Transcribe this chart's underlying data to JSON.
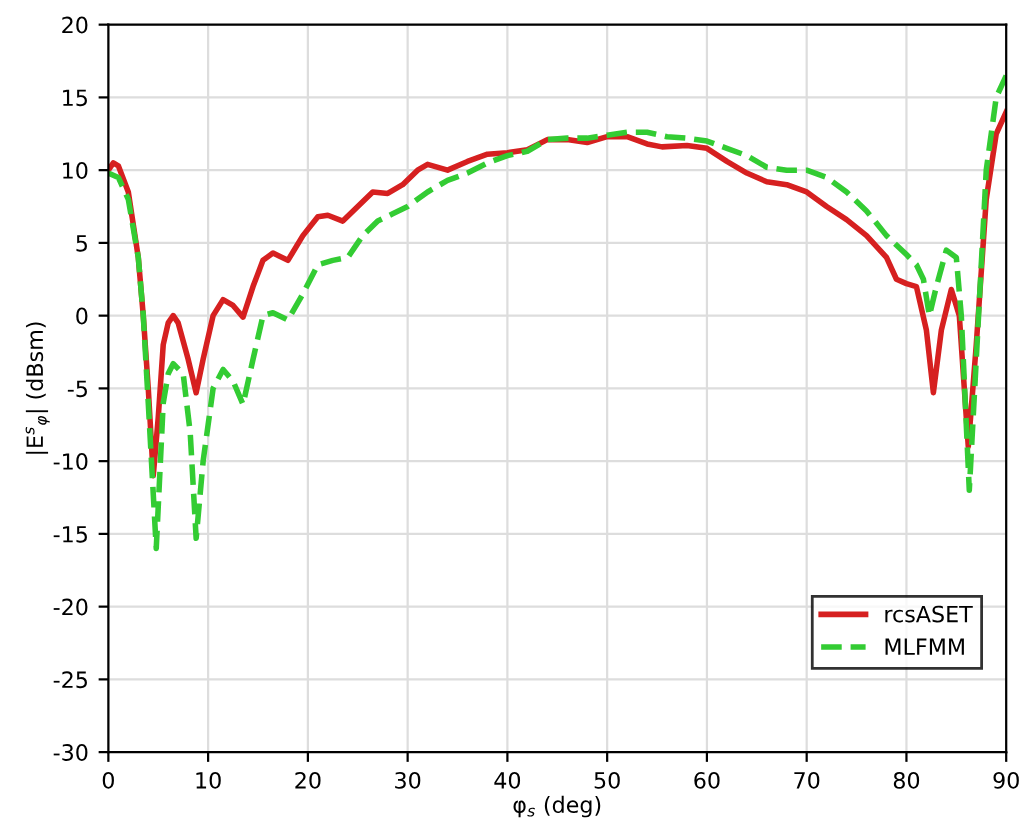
{
  "chart_data": {
    "type": "line",
    "xlabel": "φ$_{s}$ (deg)",
    "ylabel": "|E$^{s}$$_{φ}$| (dBsm)",
    "xlim": [
      0,
      90
    ],
    "xticks": [
      0,
      10,
      20,
      30,
      40,
      50,
      60,
      70,
      80,
      90
    ],
    "ylim": [
      -30,
      20
    ],
    "yticks": [
      -30,
      -25,
      -20,
      -15,
      -10,
      -5,
      0,
      5,
      10,
      15,
      20
    ],
    "grid": true,
    "legend": "bottom right",
    "marker": "none",
    "series": [
      {
        "name": "rcsASET",
        "color": "#d62020",
        "line_style": "solid",
        "x": [
          0,
          0.5,
          1,
          2,
          3,
          3.5,
          4,
          4.5,
          5,
          5.5,
          6,
          6.5,
          7,
          8,
          8.8,
          9.5,
          10.5,
          11.5,
          12.5,
          13.5,
          14.5,
          15.5,
          16.5,
          18,
          19.5,
          21,
          22,
          23.5,
          25,
          26.5,
          28,
          29.5,
          31,
          32,
          34,
          36,
          38,
          40,
          42,
          44,
          46,
          48,
          50,
          52,
          54,
          55.5,
          58,
          60,
          62,
          64,
          66,
          68,
          70,
          72,
          74,
          76,
          78,
          79,
          80,
          81,
          82,
          82.7,
          83.5,
          84.5,
          85.3,
          86.2,
          87,
          88,
          89,
          90
        ],
        "values": [
          10,
          10.5,
          10.3,
          8.5,
          4,
          0,
          -5,
          -11,
          -7,
          -2,
          -0.5,
          0,
          -0.5,
          -3,
          -5.3,
          -3,
          0,
          1.1,
          0.7,
          -0.1,
          2,
          3.8,
          4.3,
          3.8,
          5.5,
          6.8,
          6.9,
          6.5,
          7.5,
          8.5,
          8.4,
          9,
          10,
          10.4,
          10,
          10.6,
          11.1,
          11.2,
          11.4,
          12.1,
          12.1,
          11.9,
          12.3,
          12.3,
          11.8,
          11.6,
          11.7,
          11.5,
          10.6,
          9.8,
          9.2,
          9,
          8.5,
          7.5,
          6.6,
          5.5,
          4,
          2.5,
          2.2,
          2,
          -1,
          -5.3,
          -1,
          1.8,
          0,
          -9,
          -2,
          8,
          12.5,
          14
        ]
      },
      {
        "name": "MLFMM",
        "color": "#33cc33",
        "line_style": "dashed",
        "x": [
          0,
          1,
          2,
          3,
          3.5,
          4,
          4.8,
          5.5,
          6,
          6.5,
          7.5,
          8.2,
          8.8,
          9.5,
          10.5,
          11.5,
          12.5,
          13.5,
          14.5,
          15.5,
          16.5,
          18,
          19.5,
          21,
          22.5,
          24,
          25.5,
          27,
          28.5,
          30,
          32,
          34,
          36,
          38,
          40,
          42,
          44,
          46,
          48,
          50,
          52,
          54,
          56,
          58,
          60,
          62,
          64,
          66,
          68,
          70,
          72,
          74,
          76,
          78,
          80,
          81,
          81.7,
          82.3,
          83,
          84,
          85,
          85.5,
          86.3,
          87,
          88,
          89,
          90
        ],
        "values": [
          9.8,
          9.5,
          8,
          4,
          0,
          -6,
          -16,
          -6,
          -4,
          -3.3,
          -4,
          -8,
          -15.3,
          -10,
          -5,
          -3.7,
          -4.5,
          -6.1,
          -3,
          0,
          0.2,
          -0.3,
          1.5,
          3.5,
          3.8,
          4,
          5.5,
          6.5,
          7,
          7.5,
          8.5,
          9.3,
          9.8,
          10.5,
          11,
          11.3,
          12.1,
          12.2,
          12.2,
          12.4,
          12.6,
          12.6,
          12.3,
          12.2,
          12,
          11.5,
          11,
          10.2,
          10,
          10,
          9.5,
          8.5,
          7.2,
          5.5,
          4.2,
          3.5,
          2.5,
          0,
          2,
          4.5,
          4,
          0,
          -12,
          -3,
          10,
          15,
          16.5
        ]
      }
    ]
  }
}
